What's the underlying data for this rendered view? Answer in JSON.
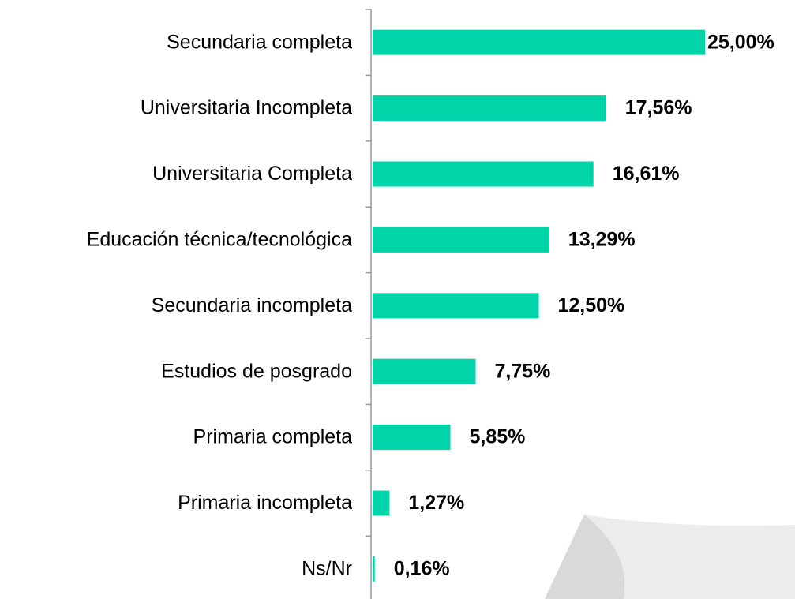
{
  "chart_data": {
    "type": "bar",
    "orientation": "horizontal",
    "categories": [
      "Secundaria completa",
      "Universitaria Incompleta",
      "Universitaria Completa",
      "Educación técnica/tecnológica",
      "Secundaria incompleta",
      "Estudios de posgrado",
      "Primaria completa",
      "Primaria incompleta",
      "Ns/Nr"
    ],
    "values": [
      25.0,
      17.56,
      16.61,
      13.29,
      12.5,
      7.75,
      5.85,
      1.27,
      0.16
    ],
    "value_labels": [
      "25,00%",
      "17,56%",
      "16,61%",
      "13,29%",
      "12,50%",
      "7,75%",
      "5,85%",
      "1,27%",
      "0,16%"
    ],
    "color": "#00d4a8"
  }
}
